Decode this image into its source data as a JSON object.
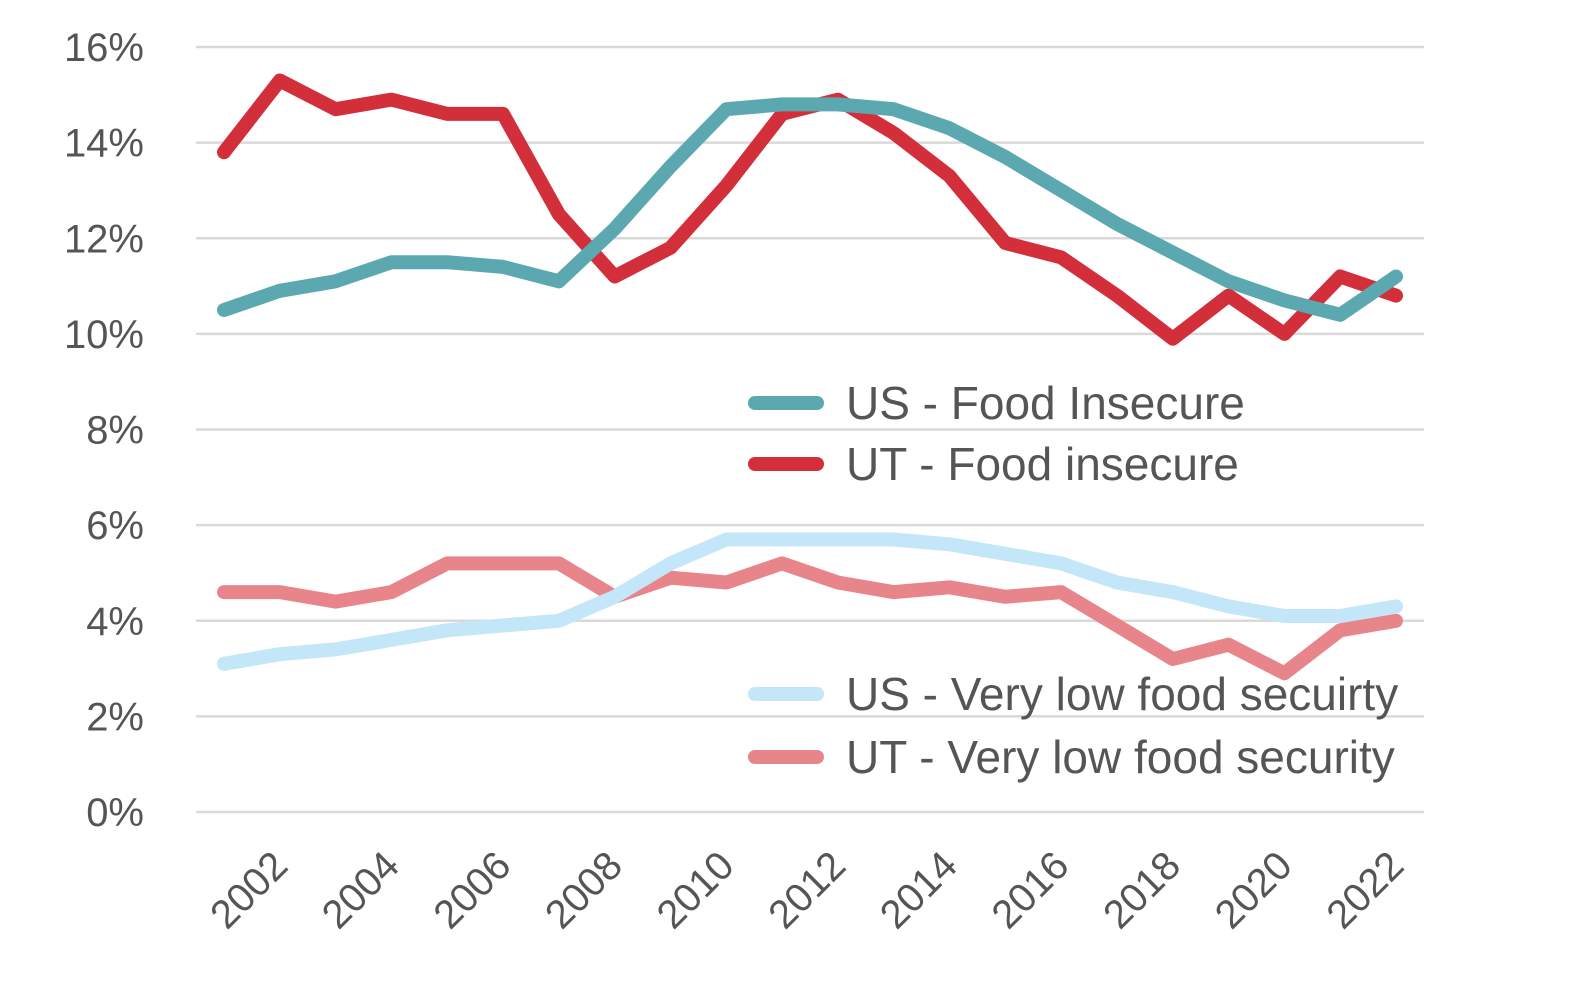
{
  "chart_data": {
    "type": "line",
    "x": [
      2001,
      2002,
      2003,
      2004,
      2005,
      2006,
      2007,
      2008,
      2009,
      2010,
      2011,
      2012,
      2013,
      2014,
      2015,
      2016,
      2017,
      2018,
      2019,
      2020,
      2021,
      2022
    ],
    "x_tick_labels": [
      "2002",
      "2004",
      "2006",
      "2008",
      "2010",
      "2012",
      "2014",
      "2016",
      "2018",
      "2020",
      "2022"
    ],
    "y_tick_labels": [
      "0%",
      "2%",
      "4%",
      "6%",
      "8%",
      "10%",
      "12%",
      "14%",
      "16%"
    ],
    "ylim": [
      0,
      16
    ],
    "grid": true,
    "legend_placement": "center-right",
    "series": [
      {
        "name": "US - Food Insecure",
        "color": "#5ba8b0",
        "values": [
          10.5,
          10.9,
          11.1,
          11.5,
          11.5,
          11.4,
          11.1,
          12.2,
          13.5,
          14.7,
          14.8,
          14.8,
          14.7,
          14.3,
          13.7,
          13.0,
          12.3,
          11.7,
          11.1,
          10.7,
          10.4,
          11.2
        ]
      },
      {
        "name": "UT - Food insecure",
        "color": "#d22f3b",
        "values": [
          13.8,
          15.3,
          14.7,
          14.9,
          14.6,
          14.6,
          12.5,
          11.2,
          11.8,
          13.1,
          14.6,
          14.9,
          14.2,
          13.3,
          11.9,
          11.6,
          10.8,
          9.9,
          10.8,
          10.0,
          11.2,
          10.8
        ]
      },
      {
        "name": "US - Very low food secuirty",
        "color": "#c3e6f8",
        "values": [
          3.1,
          3.3,
          3.4,
          3.6,
          3.8,
          3.9,
          4.0,
          4.5,
          5.2,
          5.7,
          5.7,
          5.7,
          5.7,
          5.6,
          5.4,
          5.2,
          4.8,
          4.6,
          4.3,
          4.1,
          4.1,
          4.3
        ]
      },
      {
        "name": "UT - Very low food security",
        "color": "#e8858b",
        "values": [
          4.6,
          4.6,
          4.4,
          4.6,
          5.2,
          5.2,
          5.2,
          4.5,
          4.9,
          4.8,
          5.2,
          4.8,
          4.6,
          4.7,
          4.5,
          4.6,
          3.9,
          3.2,
          3.5,
          2.9,
          3.8,
          4.0
        ]
      }
    ],
    "legend_groups": [
      [
        "US - Food Insecure",
        "UT - Food insecure"
      ],
      [
        "US - Very low food secuirty",
        "UT - Very low food security"
      ]
    ]
  }
}
